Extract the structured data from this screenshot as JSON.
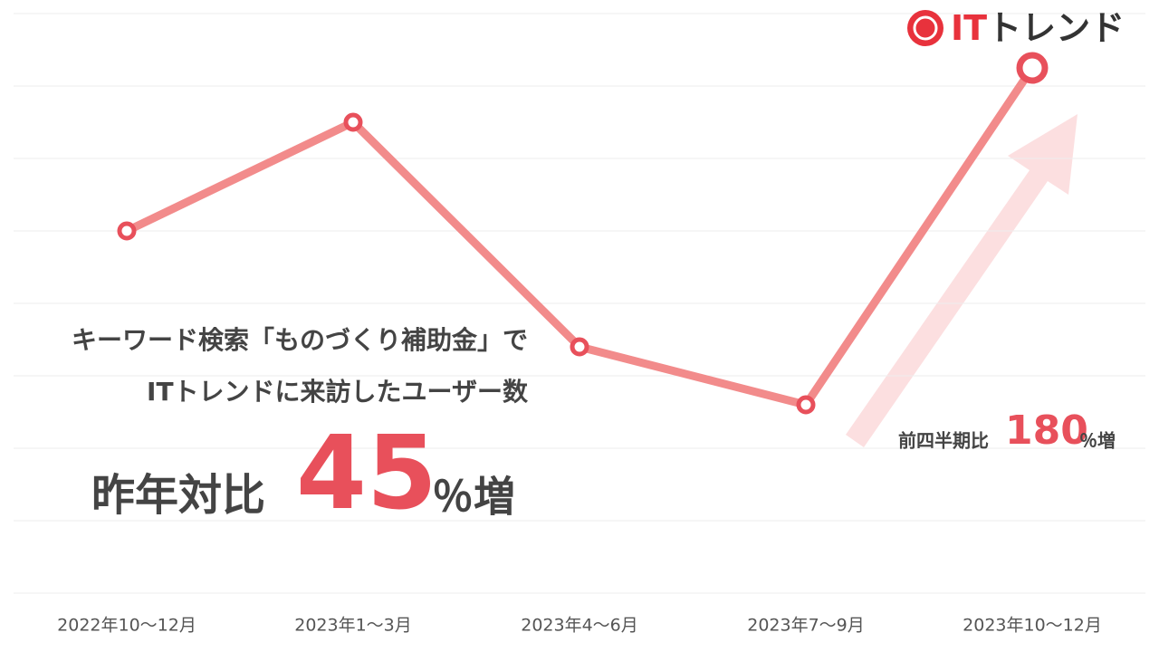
{
  "chart_data": {
    "type": "line",
    "categories": [
      "2022年10～12月",
      "2023年1～3月",
      "2023年4～6月",
      "2023年7～9月",
      "2023年10～12月"
    ],
    "values": [
      5.0,
      6.5,
      3.4,
      2.6,
      7.25
    ],
    "color": "#f28b8b",
    "marker_color": "#e8505b",
    "ylim": [
      0,
      8
    ],
    "yticks": [
      0,
      1,
      2,
      3,
      4,
      5,
      6,
      7,
      8
    ],
    "grid": true,
    "annotations": {
      "subtitle_line1": "キーワード検索「ものづくり補助金」で",
      "subtitle_line2": "ITトレンドに来訪したユーザー数",
      "yoy_label": "昨年対比",
      "yoy_value": "45",
      "yoy_suffix": "％増",
      "qoq_label": "前四半期比",
      "qoq_value": "180",
      "qoq_suffix": "％増"
    }
  },
  "logo": {
    "red": "IT",
    "dark": "トレンド"
  }
}
